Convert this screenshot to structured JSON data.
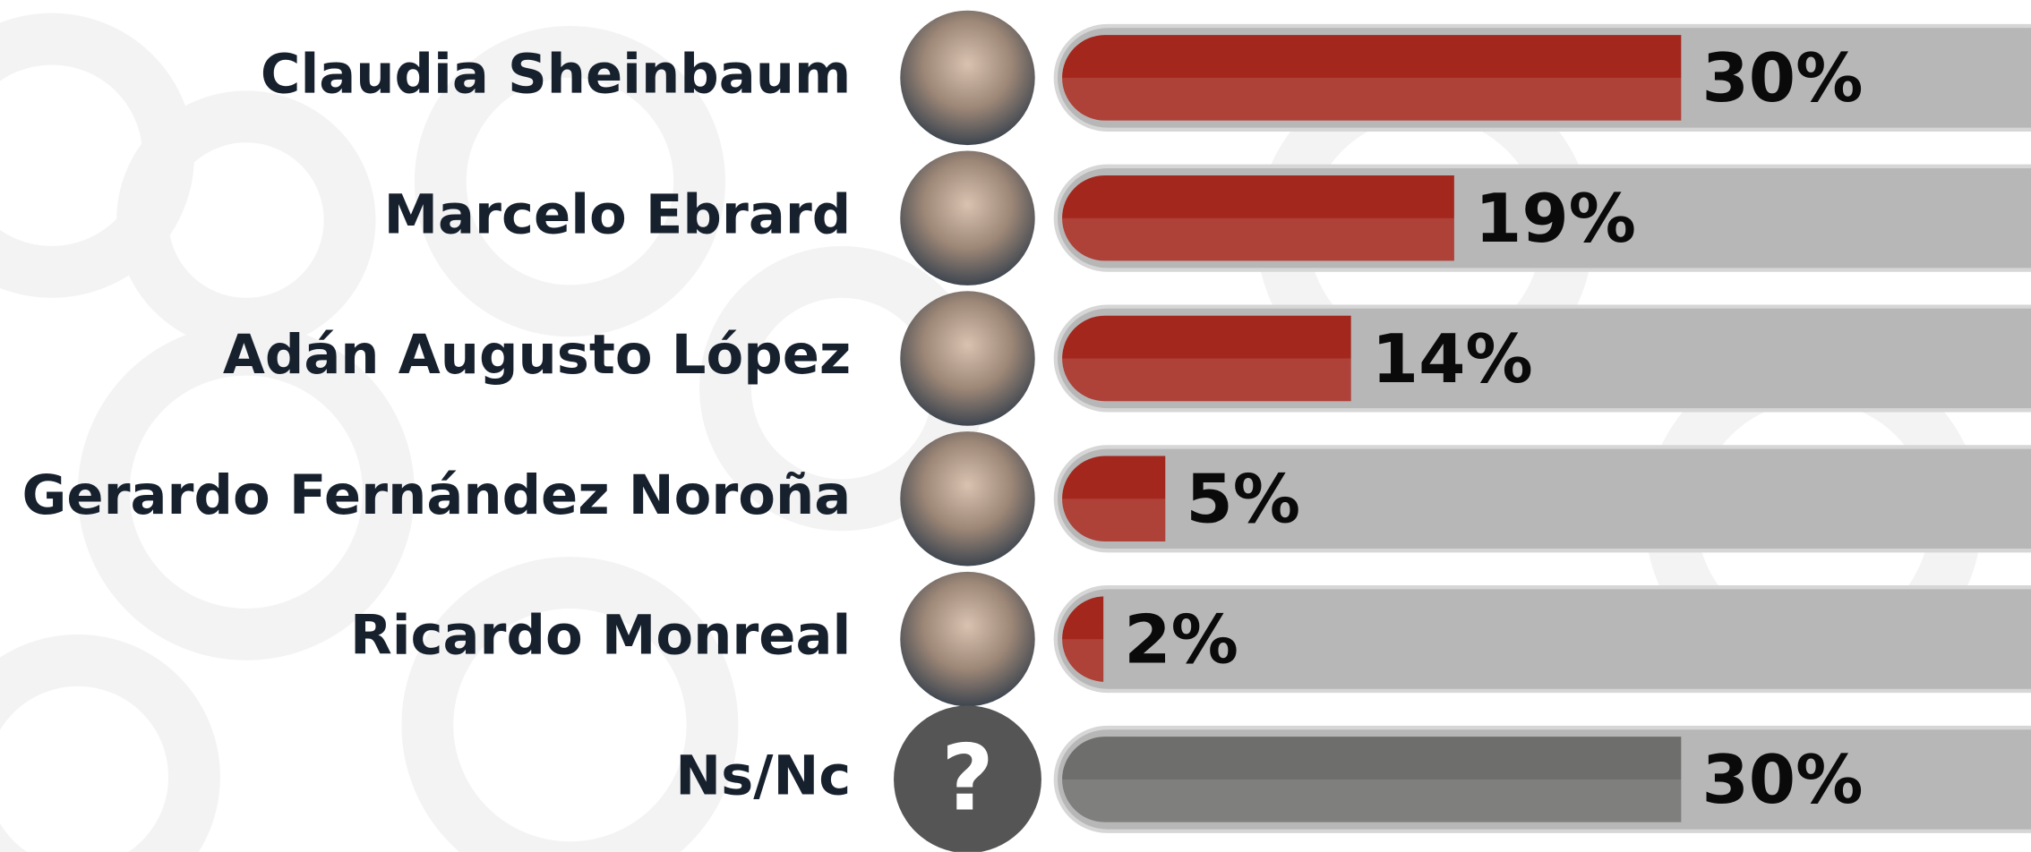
{
  "chart_data": {
    "type": "bar",
    "orientation": "horizontal",
    "categories": [
      "Claudia Sheinbaum",
      "Marcelo Ebrard",
      "Adán Augusto López",
      "Gerardo Fernández Noroña",
      "Ricardo Monreal",
      "Ns/Nc"
    ],
    "values": [
      30,
      19,
      14,
      5,
      2,
      30
    ],
    "value_labels": [
      "30%",
      "19%",
      "14%",
      "5%",
      "2%",
      "30%"
    ],
    "colors": [
      "#a3271d",
      "#a3271d",
      "#a3271d",
      "#a3271d",
      "#a3271d",
      "#6e6e6d"
    ],
    "unknown_icon": "?"
  }
}
